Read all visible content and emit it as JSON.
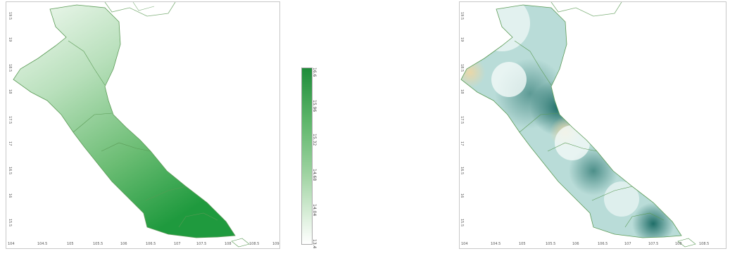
{
  "left_map": {
    "x_ticks": [
      "104",
      "104.5",
      "105",
      "105.5",
      "106",
      "106.5",
      "107",
      "107.5",
      "108",
      "108.5",
      "109"
    ],
    "y_ticks": [
      "19.5",
      "19",
      "18.5",
      "18",
      "17.5",
      "17",
      "16.5",
      "16",
      "15.5"
    ]
  },
  "right_map": {
    "x_ticks": [
      "104",
      "104.5",
      "105",
      "105.5",
      "106",
      "106.5",
      "107",
      "107.5",
      "108",
      "108.5"
    ],
    "y_ticks": [
      "19.5",
      "19",
      "18.5",
      "18",
      "17.5",
      "17",
      "16.5",
      "16",
      "15.5"
    ]
  },
  "colorbar": {
    "ticks": [
      "16.6",
      "15.96",
      "15.32",
      "14.68",
      "14.04",
      "13.4"
    ],
    "colors": {
      "high": "#1e8c3a",
      "low": "#ffffff"
    }
  },
  "colors": {
    "teal": "#2f7f78",
    "tan": "#efe2bf",
    "boundary": "#5a9a55"
  }
}
